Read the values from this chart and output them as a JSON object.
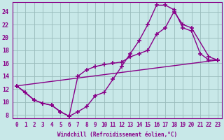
{
  "xlabel": "Windchill (Refroidissement éolien,°C)",
  "xlim": [
    -0.5,
    23.5
  ],
  "ylim": [
    7.5,
    25.5
  ],
  "xticks": [
    0,
    1,
    2,
    3,
    4,
    5,
    6,
    7,
    8,
    9,
    10,
    11,
    12,
    13,
    14,
    15,
    16,
    17,
    18,
    19,
    20,
    21,
    22,
    23
  ],
  "yticks": [
    8,
    10,
    12,
    14,
    16,
    18,
    20,
    22,
    24
  ],
  "background_color": "#c8e8e8",
  "grid_color": "#99bbbb",
  "line_color": "#880088",
  "line1_x": [
    0,
    1,
    2,
    3,
    4,
    5,
    6,
    7,
    8,
    9,
    10,
    11,
    12,
    13,
    14,
    15,
    16,
    17,
    18,
    19,
    20,
    21,
    22,
    23
  ],
  "line1_y": [
    12.5,
    11.5,
    10.3,
    9.8,
    9.5,
    8.5,
    7.8,
    8.5,
    9.3,
    11.0,
    11.5,
    13.5,
    15.5,
    17.5,
    19.5,
    22.0,
    25.0,
    25.0,
    24.3,
    21.5,
    21.0,
    17.5,
    16.5,
    16.5
  ],
  "line2_x": [
    0,
    2,
    3,
    4,
    5,
    6,
    7,
    8,
    9,
    10,
    11,
    12,
    13,
    14,
    15,
    16,
    17,
    18,
    19,
    20,
    22,
    23
  ],
  "line2_y": [
    12.5,
    10.3,
    9.8,
    9.5,
    8.5,
    7.8,
    14.0,
    15.0,
    15.5,
    15.8,
    16.0,
    16.2,
    17.0,
    17.5,
    18.0,
    20.5,
    21.5,
    24.0,
    22.0,
    21.5,
    17.0,
    16.5
  ],
  "line3_x": [
    0,
    23
  ],
  "line3_y": [
    12.5,
    16.5
  ],
  "marker": "+",
  "markersize": 4,
  "markeredgewidth": 1.2,
  "linewidth": 1.0,
  "xlabel_fontsize": 5.5,
  "tick_fontsize": 5.5
}
